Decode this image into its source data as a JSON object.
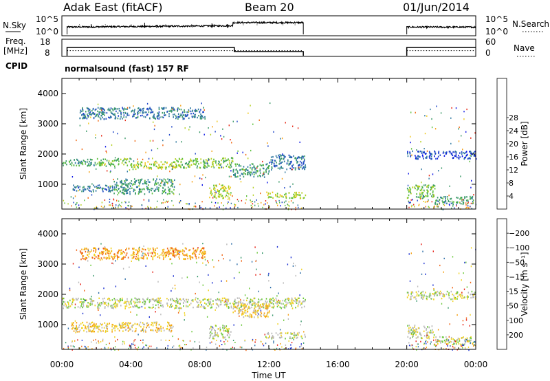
{
  "header": {
    "station": "Adak East (fitACF)",
    "beam": "Beam 20",
    "date": "01/Jun/2014"
  },
  "status_panels": {
    "nsky_label": "N.Sky",
    "nsky_ticks": [
      "10^5",
      "10^0"
    ],
    "nsearch_label": "N.Search",
    "nsearch_ticks": [
      "10^5",
      "10^0"
    ],
    "freq_label": "Freq.",
    "freq_unit": "[MHz]",
    "freq_ticks": [
      "18",
      "8"
    ],
    "nave_label": "Nave",
    "nave_ticks": [
      "60",
      "0"
    ],
    "cpid_label": "CPID",
    "cpid_text": "normalsound (fast) 157 RF",
    "data_segments_hours": [
      [
        0.3,
        14.0
      ],
      [
        20.0,
        24.0
      ]
    ],
    "freq_step": {
      "hours": [
        0.3,
        10.0,
        14.0
      ],
      "levels_mhz": [
        13.2,
        10.8
      ]
    },
    "freq_late_level_mhz": 13.2,
    "nave_level": 20
  },
  "chart_data": [
    {
      "type": "heatmap",
      "name": "power",
      "ylabel": "Slant Range [km]",
      "ylim": [
        180,
        4500
      ],
      "yticks": [
        1000,
        2000,
        3000,
        4000
      ],
      "xlim": [
        0,
        24
      ],
      "colorbar": {
        "label": "Power [dB]",
        "ticks": [
          "4",
          "8",
          "12",
          "16",
          "20",
          "24",
          "28"
        ],
        "colors": [
          "#0a14e6",
          "#1e46c8",
          "#2e78a0",
          "#3c9a68",
          "#5abf3a",
          "#b4cf1e",
          "#f0c81e",
          "#f5a014",
          "#f0640a",
          "#e62814"
        ]
      },
      "bands": [
        {
          "x": [
            1.0,
            8.3
          ],
          "y": [
            3180,
            3560
          ],
          "level": 2
        },
        {
          "x": [
            0.0,
            2.0
          ],
          "y": [
            1620,
            1850
          ],
          "level": 3
        },
        {
          "x": [
            2.0,
            4.0
          ],
          "y": [
            1620,
            1880
          ],
          "level": 4
        },
        {
          "x": [
            4.0,
            6.5
          ],
          "y": [
            1520,
            1780
          ],
          "level": 5
        },
        {
          "x": [
            6.5,
            9.9
          ],
          "y": [
            1560,
            1900
          ],
          "level": 4
        },
        {
          "x": [
            9.9,
            12.0
          ],
          "y": [
            1260,
            1700
          ],
          "level": 3
        },
        {
          "x": [
            12.0,
            14.1
          ],
          "y": [
            1500,
            2000
          ],
          "level": 2
        },
        {
          "x": [
            0.5,
            3.0
          ],
          "y": [
            780,
            1000
          ],
          "level": 2
        },
        {
          "x": [
            3.0,
            6.5
          ],
          "y": [
            700,
            1200
          ],
          "level": 3
        },
        {
          "x": [
            8.5,
            9.8
          ],
          "y": [
            550,
            1000
          ],
          "level": 5
        },
        {
          "x": [
            11.8,
            14.1
          ],
          "y": [
            560,
            760
          ],
          "level": 5
        },
        {
          "x": [
            20.0,
            21.6
          ],
          "y": [
            560,
            1000
          ],
          "level": 4
        },
        {
          "x": [
            21.6,
            23.8
          ],
          "y": [
            360,
            620
          ],
          "level": 3
        },
        {
          "x": [
            20.0,
            24.0
          ],
          "y": [
            1860,
            2120
          ],
          "level": 1
        }
      ]
    },
    {
      "type": "heatmap",
      "name": "velocity",
      "ylabel": "Slant Range [km]",
      "ylim": [
        180,
        4500
      ],
      "yticks": [
        1000,
        2000,
        3000,
        4000
      ],
      "xlim": [
        0,
        24
      ],
      "xticks": [
        "00:00",
        "04:00",
        "08:00",
        "12:00",
        "16:00",
        "20:00",
        "00:00"
      ],
      "xlabel": "Time UT",
      "colorbar": {
        "label": "Velocity [m s⁻¹]",
        "ticks": [
          "200",
          "100",
          "50",
          "15",
          "−15",
          "−50",
          "−100",
          "−200"
        ],
        "colors": [
          "#1e32d2",
          "#2e6ea8",
          "#3c9a6e",
          "#6cc83a",
          "#b9b9b9",
          "#f0d21e",
          "#f5a014",
          "#f06414",
          "#e61e14"
        ]
      },
      "bands": [
        {
          "x": [
            1.0,
            8.3
          ],
          "y": [
            3180,
            3560
          ],
          "level": 6
        },
        {
          "x": [
            0.0,
            14.1
          ],
          "y": [
            1560,
            1900
          ],
          "level": 4
        },
        {
          "x": [
            9.9,
            12.0
          ],
          "y": [
            1260,
            1700
          ],
          "level": 5
        },
        {
          "x": [
            0.5,
            6.5
          ],
          "y": [
            780,
            1100
          ],
          "level": 5
        },
        {
          "x": [
            8.5,
            9.8
          ],
          "y": [
            550,
            1000
          ],
          "level": 4
        },
        {
          "x": [
            11.8,
            14.1
          ],
          "y": [
            560,
            760
          ],
          "level": 4
        },
        {
          "x": [
            20.0,
            21.6
          ],
          "y": [
            560,
            1000
          ],
          "level": 4
        },
        {
          "x": [
            21.6,
            23.8
          ],
          "y": [
            360,
            620
          ],
          "level": 4
        },
        {
          "x": [
            20.0,
            24.0
          ],
          "y": [
            1860,
            2120
          ],
          "level": 4
        }
      ]
    }
  ]
}
